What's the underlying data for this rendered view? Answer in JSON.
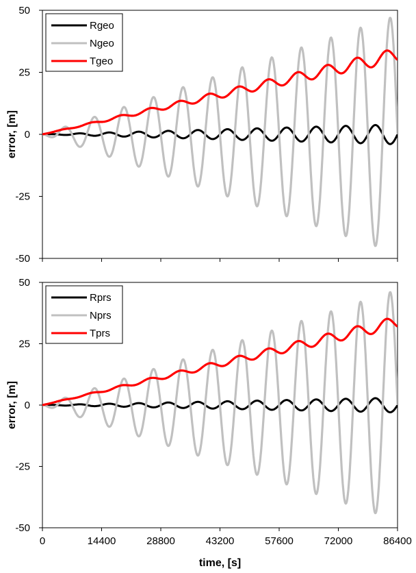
{
  "chart_data": [
    {
      "type": "line",
      "xlabel": "",
      "ylabel": "error, [m]",
      "xlim": [
        0,
        86400
      ],
      "ylim": [
        -50,
        50
      ],
      "yticks": [
        -50,
        -25,
        0,
        25,
        50
      ],
      "xticks": [
        0,
        14400,
        28800,
        43200,
        57600,
        72000,
        86400
      ],
      "xtick_labels_shown": false,
      "legend_position": "top-left",
      "series": [
        {
          "name": "Rgeo",
          "color": "#000000",
          "shape": "osc",
          "period": 7200,
          "amp_start": 0,
          "amp_end": 4,
          "trend_end": 0
        },
        {
          "name": "Ngeo",
          "color": "#c0c0c0",
          "shape": "osc_down",
          "period": 7200,
          "amp_start": 0,
          "amp_end": 48,
          "trend_end": 0
        },
        {
          "name": "Tgeo",
          "color": "#ff0000",
          "shape": "wave",
          "period": 7200,
          "amp_start": 0,
          "amp_end": 8,
          "trend_end": 30
        }
      ]
    },
    {
      "type": "line",
      "xlabel": "time, [s]",
      "ylabel": "error, [m]",
      "xlim": [
        0,
        86400
      ],
      "ylim": [
        -50,
        50
      ],
      "yticks": [
        -50,
        -25,
        0,
        25,
        50
      ],
      "xticks": [
        0,
        14400,
        28800,
        43200,
        57600,
        72000,
        86400
      ],
      "xtick_labels": [
        "0",
        "14400",
        "28800",
        "43200",
        "57600",
        "72000",
        "86400"
      ],
      "xtick_labels_shown": true,
      "legend_position": "top-left",
      "series": [
        {
          "name": "Rprs",
          "color": "#000000",
          "shape": "osc",
          "period": 7200,
          "amp_start": 0,
          "amp_end": 3,
          "trend_end": 0
        },
        {
          "name": "Nprs",
          "color": "#c0c0c0",
          "shape": "osc_down",
          "period": 7200,
          "amp_start": 0,
          "amp_end": 47,
          "trend_end": 0
        },
        {
          "name": "Tprs",
          "color": "#ff0000",
          "shape": "wave",
          "period": 7200,
          "amp_start": 0,
          "amp_end": 7,
          "trend_end": 32
        }
      ]
    }
  ]
}
